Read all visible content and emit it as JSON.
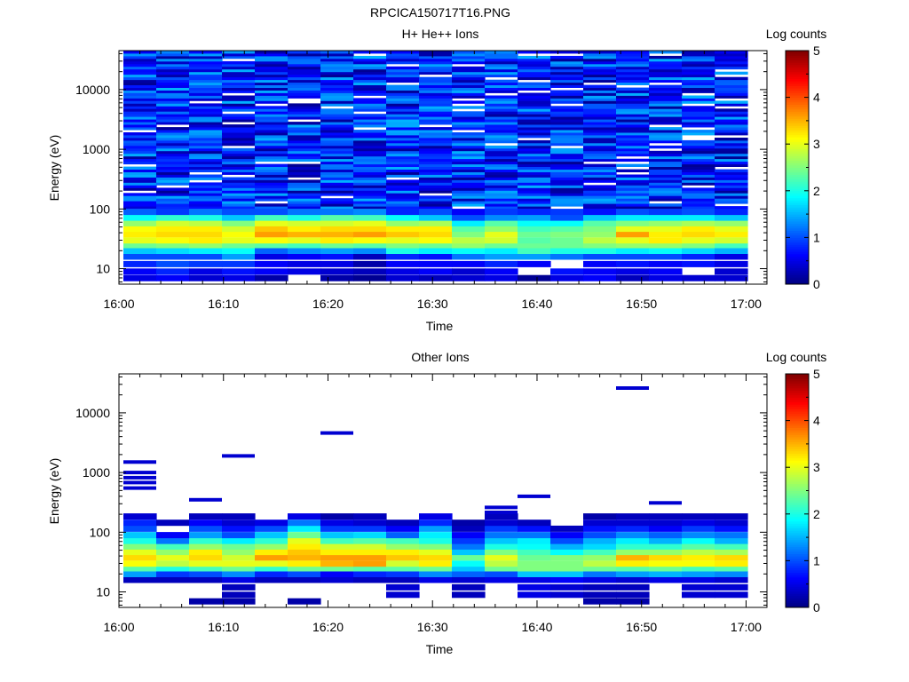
{
  "figure_title": "RPCICA150717T16.PNG",
  "colormap": [
    "#00007f",
    "#0000ff",
    "#0080ff",
    "#00ffff",
    "#80ff80",
    "#ffff00",
    "#ff8000",
    "#ff0000",
    "#7f0000"
  ],
  "chart_data": [
    {
      "type": "heatmap",
      "title": "H+ He++ Ions",
      "xlabel": "Time",
      "ylabel": "Energy (eV)",
      "x_range": [
        "16:00",
        "17:02"
      ],
      "x_ticks": [
        "16:00",
        "16:10",
        "16:20",
        "16:30",
        "16:40",
        "16:50",
        "17:00"
      ],
      "y_scale": "log",
      "y_range": [
        5.5,
        45000
      ],
      "y_ticks": [
        "10",
        "100",
        "1000",
        "10000"
      ],
      "colorbar": {
        "label": "Log counts",
        "range": [
          0,
          5
        ],
        "ticks": [
          "0",
          "1",
          "2",
          "3",
          "4",
          "5"
        ]
      },
      "time_bins": 19,
      "energy_bins": [
        {
          "e": 7,
          "v": [
            0.5,
            0.6,
            0.4,
            0.5,
            0.2,
            null,
            0.2,
            0.1,
            0.4,
            0.3,
            0.4,
            0.5,
            0.1,
            0.5,
            0.6,
            0.3,
            0.5,
            0.4,
            0.4
          ]
        },
        {
          "e": 9,
          "v": [
            0.6,
            0.8,
            0.5,
            0.7,
            0.6,
            0.5,
            0.4,
            0.3,
            0.5,
            0.6,
            0.4,
            0.6,
            null,
            0.7,
            0.6,
            0.5,
            0.6,
            null,
            0.4
          ]
        },
        {
          "e": 12,
          "v": [
            0.8,
            1.0,
            0.9,
            0.9,
            0.6,
            0.5,
            0.5,
            0.2,
            0.6,
            0.6,
            0.6,
            0.8,
            0.6,
            null,
            0.6,
            0.7,
            0.6,
            0.7,
            0.5
          ]
        },
        {
          "e": 16,
          "v": [
            1.0,
            1.0,
            1.0,
            1.4,
            0.5,
            0.6,
            0.7,
            0.3,
            0.8,
            0.7,
            1.2,
            1.4,
            1.4,
            1.2,
            1.0,
            1.0,
            1.0,
            0.8,
            0.5
          ]
        },
        {
          "e": 20,
          "v": [
            1.6,
            1.7,
            1.8,
            1.9,
            1.1,
            1.3,
            1.4,
            1.3,
            2.0,
            1.8,
            1.9,
            1.8,
            2.2,
            2.0,
            2.0,
            1.8,
            1.9,
            1.7,
            1.5
          ]
        },
        {
          "e": 25,
          "v": [
            2.4,
            2.5,
            2.6,
            2.4,
            2.3,
            2.2,
            2.4,
            2.3,
            2.5,
            2.4,
            2.6,
            2.4,
            2.4,
            2.4,
            2.5,
            2.6,
            2.6,
            2.5,
            2.2
          ]
        },
        {
          "e": 30,
          "v": [
            3.0,
            3.1,
            3.2,
            3.0,
            3.1,
            3.0,
            3.2,
            3.1,
            3.0,
            3.1,
            2.8,
            2.9,
            2.3,
            2.4,
            2.8,
            3.0,
            3.2,
            3.0,
            2.9
          ]
        },
        {
          "e": 38,
          "v": [
            3.2,
            3.3,
            3.3,
            3.1,
            3.6,
            3.5,
            3.5,
            3.6,
            3.4,
            3.3,
            2.5,
            3.0,
            2.4,
            2.5,
            2.6,
            3.6,
            3.2,
            3.3,
            3.2
          ]
        },
        {
          "e": 47,
          "v": [
            3.1,
            3.2,
            3.2,
            2.9,
            3.4,
            3.2,
            3.3,
            3.3,
            3.2,
            3.2,
            2.3,
            2.6,
            2.2,
            2.3,
            2.5,
            3.0,
            3.0,
            3.2,
            3.0
          ]
        },
        {
          "e": 58,
          "v": [
            2.6,
            2.9,
            2.8,
            2.5,
            3.0,
            2.9,
            2.9,
            3.0,
            2.6,
            2.7,
            1.8,
            2.3,
            1.9,
            1.9,
            2.3,
            2.5,
            2.6,
            2.7,
            2.6
          ]
        },
        {
          "e": 72,
          "v": [
            1.9,
            2.1,
            2.0,
            1.6,
            2.2,
            2.0,
            2.3,
            2.2,
            1.9,
            1.6,
            1.0,
            1.3,
            1.4,
            1.0,
            1.6,
            1.8,
            1.8,
            1.8,
            1.6
          ]
        },
        {
          "e": 90,
          "v": [
            1.1,
            0.9,
            1.2,
            1.0,
            1.0,
            1.2,
            1.2,
            1.3,
            0.8,
            1.0,
            0.6,
            0.9,
            0.8,
            0.9,
            0.7,
            1.0,
            0.9,
            1.0,
            0.8
          ]
        }
      ],
      "background_note": "",
      "background_range": [
        0.1,
        1.5
      ]
    },
    {
      "type": "heatmap",
      "title": "Other Ions",
      "xlabel": "Time",
      "ylabel": "Energy (eV)",
      "x_range": [
        "16:00",
        "17:02"
      ],
      "x_ticks": [
        "16:00",
        "16:10",
        "16:20",
        "16:30",
        "16:40",
        "16:50",
        "17:00"
      ],
      "y_scale": "log",
      "y_range": [
        5.5,
        45000
      ],
      "y_ticks": [
        "10",
        "100",
        "1000",
        "10000"
      ],
      "colorbar": {
        "label": "Log counts",
        "range": [
          0,
          5
        ],
        "ticks": [
          "0",
          "1",
          "2",
          "3",
          "4",
          "5"
        ]
      },
      "time_bins": 19,
      "energy_bins": [
        {
          "e": 7,
          "v": [
            null,
            null,
            0.2,
            0.2,
            null,
            0.2,
            null,
            null,
            null,
            null,
            null,
            null,
            null,
            null,
            0.2,
            0.2,
            null,
            null,
            null
          ]
        },
        {
          "e": 9,
          "v": [
            null,
            null,
            null,
            0.3,
            null,
            null,
            null,
            null,
            0.4,
            null,
            0.3,
            null,
            0.5,
            0.4,
            0.3,
            0.3,
            null,
            0.4,
            0.4
          ]
        },
        {
          "e": 12,
          "v": [
            null,
            null,
            null,
            0.3,
            null,
            null,
            null,
            null,
            0.4,
            null,
            0.3,
            null,
            0.5,
            0.4,
            0.3,
            0.3,
            null,
            0.4,
            0.4
          ]
        },
        {
          "e": 16,
          "v": [
            0.3,
            0.3,
            0.3,
            0.5,
            0.3,
            0.3,
            0.4,
            0.3,
            0.3,
            0.5,
            0.4,
            0.5,
            0.5,
            0.6,
            0.5,
            0.4,
            0.5,
            0.5,
            0.4
          ]
        },
        {
          "e": 20,
          "v": [
            1.4,
            0.9,
            1.0,
            1.3,
            0.8,
            1.0,
            0.6,
            0.8,
            0.9,
            1.3,
            1.1,
            1.0,
            1.6,
            1.6,
            1.2,
            1.4,
            1.5,
            1.4,
            1.3
          ]
        },
        {
          "e": 25,
          "v": [
            2.3,
            2.0,
            2.2,
            2.4,
            2.1,
            2.4,
            2.4,
            2.3,
            2.3,
            2.4,
            1.6,
            2.4,
            2.5,
            2.5,
            2.4,
            2.3,
            2.4,
            2.2,
            2.3
          ]
        },
        {
          "e": 30,
          "v": [
            3.1,
            2.8,
            3.0,
            3.0,
            3.0,
            3.2,
            3.5,
            3.6,
            2.9,
            3.2,
            1.9,
            2.8,
            2.5,
            2.5,
            2.8,
            3.2,
            3.1,
            3.1,
            3.2
          ]
        },
        {
          "e": 38,
          "v": [
            3.3,
            3.0,
            3.3,
            2.9,
            3.6,
            3.5,
            3.6,
            3.6,
            3.4,
            3.3,
            2.4,
            3.0,
            2.4,
            2.5,
            2.6,
            3.5,
            3.3,
            3.2,
            3.3
          ]
        },
        {
          "e": 47,
          "v": [
            3.0,
            2.6,
            3.2,
            2.6,
            3.2,
            3.4,
            3.2,
            3.2,
            3.2,
            3.0,
            1.6,
            2.5,
            2.2,
            1.9,
            2.2,
            2.6,
            2.6,
            2.8,
            2.7
          ]
        },
        {
          "e": 58,
          "v": [
            2.5,
            2.2,
            2.6,
            2.4,
            2.6,
            3.2,
            2.9,
            2.9,
            2.6,
            2.5,
            1.2,
            2.0,
            1.9,
            1.5,
            1.7,
            2.1,
            2.1,
            2.3,
            2.2
          ]
        },
        {
          "e": 72,
          "v": [
            2.0,
            1.2,
            2.1,
            1.8,
            2.1,
            3.0,
            2.2,
            2.3,
            2.2,
            2.0,
            0.9,
            1.6,
            1.8,
            1.0,
            1.5,
            1.8,
            1.5,
            1.9,
            1.5
          ]
        },
        {
          "e": 90,
          "v": [
            1.6,
            0.6,
            1.4,
            1.0,
            1.6,
            2.4,
            1.6,
            1.7,
            1.1,
            1.8,
            0.6,
            1.2,
            1.2,
            0.6,
            1.0,
            1.3,
            1.1,
            1.3,
            1.2
          ]
        },
        {
          "e": 115,
          "v": [
            1.0,
            null,
            1.0,
            0.7,
            1.0,
            1.8,
            0.9,
            0.9,
            0.6,
            1.4,
            0.3,
            0.9,
            0.7,
            0.3,
            0.7,
            0.8,
            0.6,
            0.9,
            0.7
          ]
        },
        {
          "e": 145,
          "v": [
            0.8,
            0.3,
            0.6,
            0.4,
            0.5,
            1.2,
            0.5,
            0.4,
            0.3,
            0.8,
            0.2,
            0.4,
            0.3,
            null,
            0.4,
            0.4,
            0.4,
            0.5,
            0.4
          ]
        },
        {
          "e": 185,
          "v": [
            0.4,
            null,
            0.3,
            0.3,
            null,
            0.5,
            0.2,
            0.3,
            null,
            0.5,
            null,
            0.3,
            null,
            null,
            0.2,
            0.3,
            0.3,
            0.3,
            0.3
          ]
        }
      ],
      "sparse_lines": [
        {
          "bin": 0,
          "e": [
            550,
            680,
            820,
            1000,
            1500
          ]
        },
        {
          "bin": 2,
          "e": [
            350
          ]
        },
        {
          "bin": 3,
          "e": [
            1900
          ]
        },
        {
          "bin": 6,
          "e": [
            4600
          ]
        },
        {
          "bin": 11,
          "e": [
            260,
            215
          ]
        },
        {
          "bin": 12,
          "e": [
            400
          ]
        },
        {
          "bin": 15,
          "e": [
            26000
          ]
        },
        {
          "bin": 16,
          "e": [
            310
          ]
        }
      ]
    }
  ]
}
